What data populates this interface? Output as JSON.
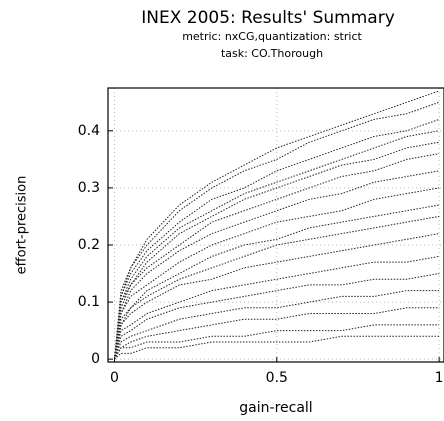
{
  "chart_data": {
    "type": "line",
    "title": "INEX 2005: Results' Summary",
    "subtitle": [
      "metric: nxCG,quantization: strict",
      "task: CO.Thorough"
    ],
    "x_label": "gain-recall",
    "y_label": "effort-precision",
    "xlim": [
      -0.02,
      1.015
    ],
    "ylim": [
      -0.005,
      0.475
    ],
    "xticks": [
      0,
      0.5,
      1
    ],
    "yticks": [
      0,
      0.1,
      0.2,
      0.3,
      0.4
    ],
    "grid": true,
    "color": "#222222",
    "x": [
      0,
      0.02,
      0.05,
      0.1,
      0.2,
      0.3,
      0.4,
      0.5,
      0.6,
      0.7,
      0.8,
      0.9,
      1
    ],
    "series": [
      {
        "values": [
          0,
          0.12,
          0.16,
          0.21,
          0.27,
          0.31,
          0.34,
          0.37,
          0.39,
          0.41,
          0.43,
          0.45,
          0.47
        ]
      },
      {
        "values": [
          0,
          0.11,
          0.16,
          0.2,
          0.26,
          0.3,
          0.33,
          0.35,
          0.38,
          0.4,
          0.42,
          0.43,
          0.45
        ]
      },
      {
        "values": [
          0,
          0.11,
          0.15,
          0.19,
          0.24,
          0.28,
          0.3,
          0.33,
          0.35,
          0.37,
          0.39,
          0.4,
          0.42
        ]
      },
      {
        "values": [
          0,
          0.1,
          0.14,
          0.18,
          0.23,
          0.26,
          0.29,
          0.31,
          0.33,
          0.35,
          0.37,
          0.39,
          0.4
        ]
      },
      {
        "values": [
          0,
          0.1,
          0.13,
          0.17,
          0.22,
          0.25,
          0.28,
          0.3,
          0.32,
          0.34,
          0.35,
          0.37,
          0.38
        ]
      },
      {
        "values": [
          0,
          0.09,
          0.13,
          0.16,
          0.2,
          0.24,
          0.26,
          0.28,
          0.3,
          0.32,
          0.33,
          0.35,
          0.36
        ]
      },
      {
        "values": [
          0,
          0.08,
          0.12,
          0.15,
          0.19,
          0.22,
          0.24,
          0.26,
          0.28,
          0.29,
          0.31,
          0.32,
          0.33
        ]
      },
      {
        "values": [
          0,
          0.08,
          0.11,
          0.13,
          0.17,
          0.2,
          0.22,
          0.24,
          0.25,
          0.26,
          0.28,
          0.29,
          0.3
        ]
      },
      {
        "values": [
          0,
          0.07,
          0.09,
          0.12,
          0.15,
          0.18,
          0.2,
          0.21,
          0.23,
          0.24,
          0.25,
          0.26,
          0.27
        ]
      },
      {
        "values": [
          0,
          0.06,
          0.09,
          0.11,
          0.14,
          0.16,
          0.18,
          0.2,
          0.21,
          0.22,
          0.23,
          0.24,
          0.25
        ]
      },
      {
        "values": [
          0,
          0.06,
          0.08,
          0.1,
          0.13,
          0.14,
          0.16,
          0.17,
          0.18,
          0.19,
          0.2,
          0.21,
          0.22
        ]
      },
      {
        "values": [
          0,
          0.05,
          0.06,
          0.08,
          0.1,
          0.12,
          0.13,
          0.14,
          0.15,
          0.16,
          0.17,
          0.17,
          0.18
        ]
      },
      {
        "values": [
          0,
          0.04,
          0.05,
          0.07,
          0.09,
          0.1,
          0.11,
          0.12,
          0.13,
          0.13,
          0.14,
          0.14,
          0.15
        ]
      },
      {
        "values": [
          0,
          0.03,
          0.04,
          0.05,
          0.07,
          0.08,
          0.09,
          0.09,
          0.1,
          0.11,
          0.11,
          0.12,
          0.12
        ]
      },
      {
        "values": [
          0,
          0.02,
          0.03,
          0.04,
          0.05,
          0.06,
          0.07,
          0.07,
          0.08,
          0.08,
          0.08,
          0.09,
          0.09
        ]
      },
      {
        "values": [
          0,
          0.02,
          0.02,
          0.03,
          0.03,
          0.04,
          0.04,
          0.05,
          0.05,
          0.05,
          0.06,
          0.06,
          0.06
        ]
      },
      {
        "values": [
          0,
          0.01,
          0.01,
          0.02,
          0.02,
          0.03,
          0.03,
          0.03,
          0.03,
          0.04,
          0.04,
          0.04,
          0.04
        ]
      }
    ]
  }
}
